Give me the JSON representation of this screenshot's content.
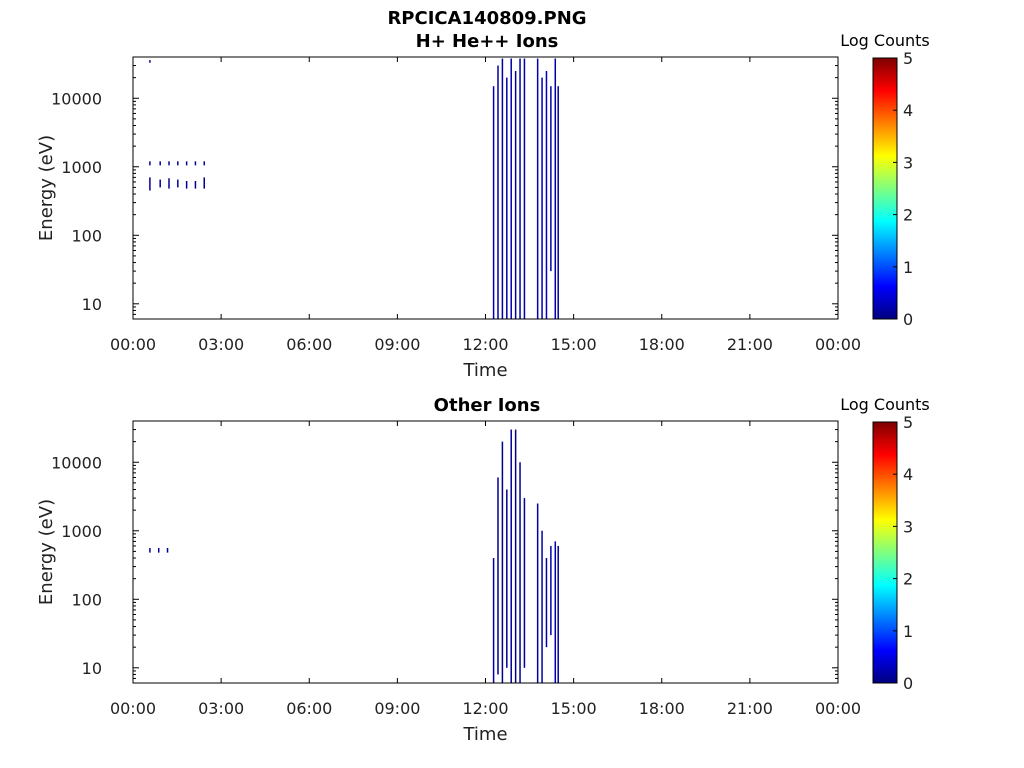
{
  "figure": {
    "file_title": "RPCICA140809.PNG"
  },
  "colorbar": {
    "label": "Log Counts",
    "ticks": [
      "0",
      "1",
      "2",
      "3",
      "4",
      "5"
    ],
    "colors": [
      "#00007f",
      "#0000ff",
      "#007fff",
      "#00ffff",
      "#7fff7f",
      "#ffff00",
      "#ff7f00",
      "#ff0000",
      "#7f0000"
    ]
  },
  "chart_data": [
    {
      "type": "heatmap",
      "title": "H+ He++ Ions",
      "xlabel": "Time",
      "ylabel": "Energy (eV)",
      "y_scale": "log",
      "ylim": [
        6,
        40000
      ],
      "xlim": [
        0,
        24
      ],
      "x_ticks": [
        "00:00",
        "03:00",
        "06:00",
        "09:00",
        "12:00",
        "15:00",
        "18:00",
        "21:00",
        "00:00"
      ],
      "y_ticks": [
        "10",
        "100",
        "1000",
        "10000"
      ],
      "clim": [
        0,
        5
      ],
      "cells": [
        {
          "t": 0.55,
          "e_lo": 33000,
          "e_hi": 36000,
          "v": 0.1
        },
        {
          "t": 0.55,
          "e_lo": 1050,
          "e_hi": 1200,
          "v": 0.1
        },
        {
          "t": 0.55,
          "e_lo": 450,
          "e_hi": 700,
          "v": 0.1
        },
        {
          "t": 0.9,
          "e_lo": 1050,
          "e_hi": 1200,
          "v": 0.1
        },
        {
          "t": 0.9,
          "e_lo": 500,
          "e_hi": 650,
          "v": 0.1
        },
        {
          "t": 1.2,
          "e_lo": 1050,
          "e_hi": 1200,
          "v": 0.1
        },
        {
          "t": 1.2,
          "e_lo": 480,
          "e_hi": 680,
          "v": 0.1
        },
        {
          "t": 1.5,
          "e_lo": 1050,
          "e_hi": 1200,
          "v": 0.1
        },
        {
          "t": 1.5,
          "e_lo": 500,
          "e_hi": 650,
          "v": 0.1
        },
        {
          "t": 1.8,
          "e_lo": 1050,
          "e_hi": 1200,
          "v": 0.1
        },
        {
          "t": 1.8,
          "e_lo": 480,
          "e_hi": 620,
          "v": 0.1
        },
        {
          "t": 2.1,
          "e_lo": 1050,
          "e_hi": 1200,
          "v": 0.1
        },
        {
          "t": 2.1,
          "e_lo": 480,
          "e_hi": 620,
          "v": 0.1
        },
        {
          "t": 2.4,
          "e_lo": 1050,
          "e_hi": 1200,
          "v": 0.1
        },
        {
          "t": 2.4,
          "e_lo": 480,
          "e_hi": 700,
          "v": 0.1
        },
        {
          "t": 12.25,
          "e_lo": 6,
          "e_hi": 15000,
          "v": 0.3
        },
        {
          "t": 12.4,
          "e_lo": 6,
          "e_hi": 30000,
          "v": 0.2
        },
        {
          "t": 12.55,
          "e_lo": 6,
          "e_hi": 38000,
          "v": 0.2
        },
        {
          "t": 12.7,
          "e_lo": 6,
          "e_hi": 20000,
          "v": 0.2
        },
        {
          "t": 12.85,
          "e_lo": 6,
          "e_hi": 38000,
          "v": 0.2
        },
        {
          "t": 13.0,
          "e_lo": 6,
          "e_hi": 25000,
          "v": 0.2
        },
        {
          "t": 13.15,
          "e_lo": 6,
          "e_hi": 38000,
          "v": 0.2
        },
        {
          "t": 13.3,
          "e_lo": 6,
          "e_hi": 38000,
          "v": 0.2
        },
        {
          "t": 13.75,
          "e_lo": 6,
          "e_hi": 38000,
          "v": 0.3
        },
        {
          "t": 13.9,
          "e_lo": 6,
          "e_hi": 20000,
          "v": 0.3
        },
        {
          "t": 14.05,
          "e_lo": 6,
          "e_hi": 25000,
          "v": 0.3
        },
        {
          "t": 14.2,
          "e_lo": 30,
          "e_hi": 15000,
          "v": 0.2
        },
        {
          "t": 14.35,
          "e_lo": 6,
          "e_hi": 38000,
          "v": 0.2
        },
        {
          "t": 14.45,
          "e_lo": 6,
          "e_hi": 15000,
          "v": 0.2
        }
      ]
    },
    {
      "type": "heatmap",
      "title": "Other Ions",
      "xlabel": "Time",
      "ylabel": "Energy (eV)",
      "y_scale": "log",
      "ylim": [
        6,
        40000
      ],
      "xlim": [
        0,
        24
      ],
      "x_ticks": [
        "00:00",
        "03:00",
        "06:00",
        "09:00",
        "12:00",
        "15:00",
        "18:00",
        "21:00",
        "00:00"
      ],
      "y_ticks": [
        "10",
        "100",
        "1000",
        "10000"
      ],
      "clim": [
        0,
        5
      ],
      "cells": [
        {
          "t": 0.55,
          "e_lo": 480,
          "e_hi": 560,
          "v": 0.1
        },
        {
          "t": 0.85,
          "e_lo": 480,
          "e_hi": 560,
          "v": 0.1
        },
        {
          "t": 1.15,
          "e_lo": 480,
          "e_hi": 560,
          "v": 0.1
        },
        {
          "t": 12.25,
          "e_lo": 6,
          "e_hi": 400,
          "v": 0.2
        },
        {
          "t": 12.4,
          "e_lo": 8,
          "e_hi": 6000,
          "v": 0.1
        },
        {
          "t": 12.55,
          "e_lo": 6,
          "e_hi": 20000,
          "v": 0.1
        },
        {
          "t": 12.7,
          "e_lo": 10,
          "e_hi": 4000,
          "v": 0.1
        },
        {
          "t": 12.85,
          "e_lo": 6,
          "e_hi": 30000,
          "v": 0.1
        },
        {
          "t": 13.0,
          "e_lo": 6,
          "e_hi": 30000,
          "v": 0.1
        },
        {
          "t": 13.15,
          "e_lo": 6,
          "e_hi": 10000,
          "v": 0.1
        },
        {
          "t": 13.3,
          "e_lo": 10,
          "e_hi": 3000,
          "v": 0.1
        },
        {
          "t": 13.75,
          "e_lo": 6,
          "e_hi": 2500,
          "v": 0.2
        },
        {
          "t": 13.9,
          "e_lo": 6,
          "e_hi": 1000,
          "v": 0.2
        },
        {
          "t": 14.05,
          "e_lo": 20,
          "e_hi": 400,
          "v": 0.2
        },
        {
          "t": 14.2,
          "e_lo": 30,
          "e_hi": 600,
          "v": 0.2
        },
        {
          "t": 14.35,
          "e_lo": 6,
          "e_hi": 700,
          "v": 0.2
        },
        {
          "t": 14.45,
          "e_lo": 6,
          "e_hi": 600,
          "v": 0.2
        }
      ]
    }
  ]
}
